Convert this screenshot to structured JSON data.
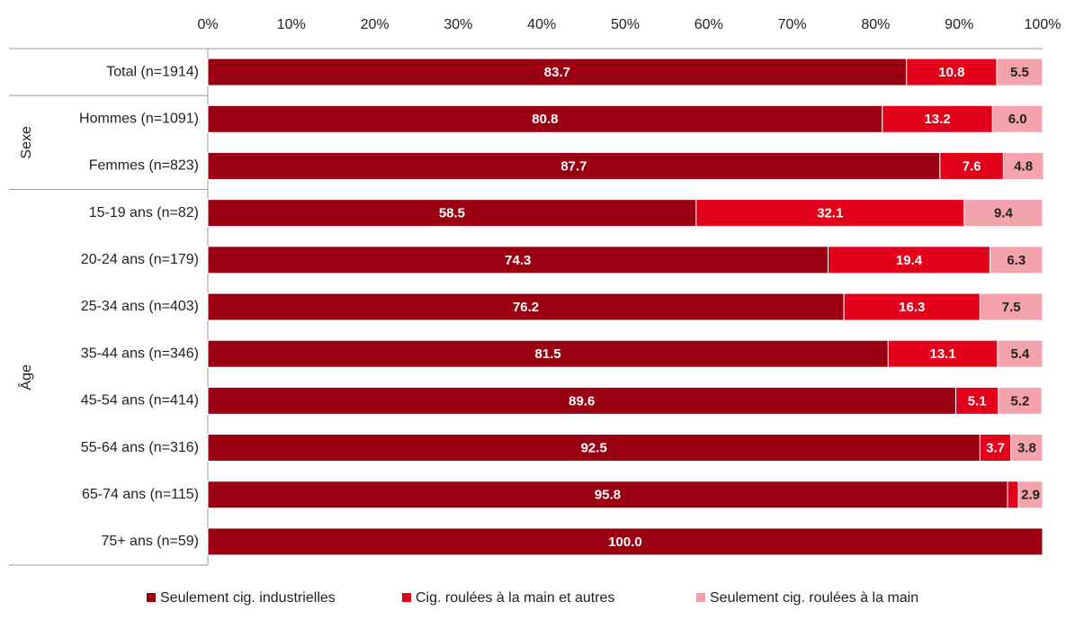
{
  "chart_data": {
    "type": "stacked-bar-horizontal",
    "categories": [
      "Total (n=1914)",
      "Hommes (n=1091)",
      "Femmes (n=823)",
      "15-19 ans (n=82)",
      "20-24 ans (n=179)",
      "25-34 ans (n=403)",
      "35-44 ans (n=346)",
      "45-54 ans (n=414)",
      "55-64 ans (n=316)",
      "65-74 ans (n=115)",
      "75+ ans (n=59)"
    ],
    "groups": [
      {
        "label": "Sexe",
        "first": 1,
        "size": 2
      },
      {
        "label": "Âge",
        "first": 3,
        "size": 8
      }
    ],
    "series": [
      {
        "name": "Seulement cig. industrielles",
        "color": "#9a0012",
        "values": [
          83.7,
          80.8,
          87.7,
          58.5,
          74.3,
          76.2,
          81.5,
          89.6,
          92.5,
          95.8,
          100
        ],
        "value_labels": [
          "83.7",
          "80.8",
          "87.7",
          "58.5",
          "74.3",
          "76.2",
          "81.5",
          "89.6",
          "92.5",
          "95.8",
          "100.0"
        ]
      },
      {
        "name": "Cig. roulées à la main et autres",
        "color": "#e2001a",
        "values": [
          10.8,
          13.2,
          7.6,
          32.1,
          19.4,
          16.3,
          13.1,
          5.1,
          3.7,
          1.3,
          null
        ],
        "value_labels": [
          "10.8",
          "13.2",
          "7.6",
          "32.1",
          "19.4",
          "16.3",
          "13.1",
          "5.1",
          "3.7",
          null,
          null
        ]
      },
      {
        "name": "Seulement cig. roulées à la main",
        "color": "#f4a3ac",
        "values": [
          5.5,
          6.0,
          4.8,
          9.4,
          6.3,
          7.5,
          5.4,
          5.2,
          3.8,
          2.9,
          null
        ],
        "value_labels": [
          "5.5",
          "6.0",
          "4.8",
          "9.4",
          "6.3",
          "7.5",
          "5.4",
          "5.2",
          "3.8",
          "2.9",
          null
        ]
      }
    ],
    "xlim": [
      0,
      100
    ],
    "xticks": [
      {
        "value": 0,
        "label": "0%"
      },
      {
        "value": 10,
        "label": "10%"
      },
      {
        "value": 20,
        "label": "20%"
      },
      {
        "value": 30,
        "label": "30%"
      },
      {
        "value": 40,
        "label": "40%"
      },
      {
        "value": 50,
        "label": "50%"
      },
      {
        "value": 60,
        "label": "60%"
      },
      {
        "value": 70,
        "label": "70%"
      },
      {
        "value": 80,
        "label": "80%"
      },
      {
        "value": 90,
        "label": "90%"
      },
      {
        "value": 100,
        "label": "100%"
      }
    ],
    "legend": "bottom"
  }
}
